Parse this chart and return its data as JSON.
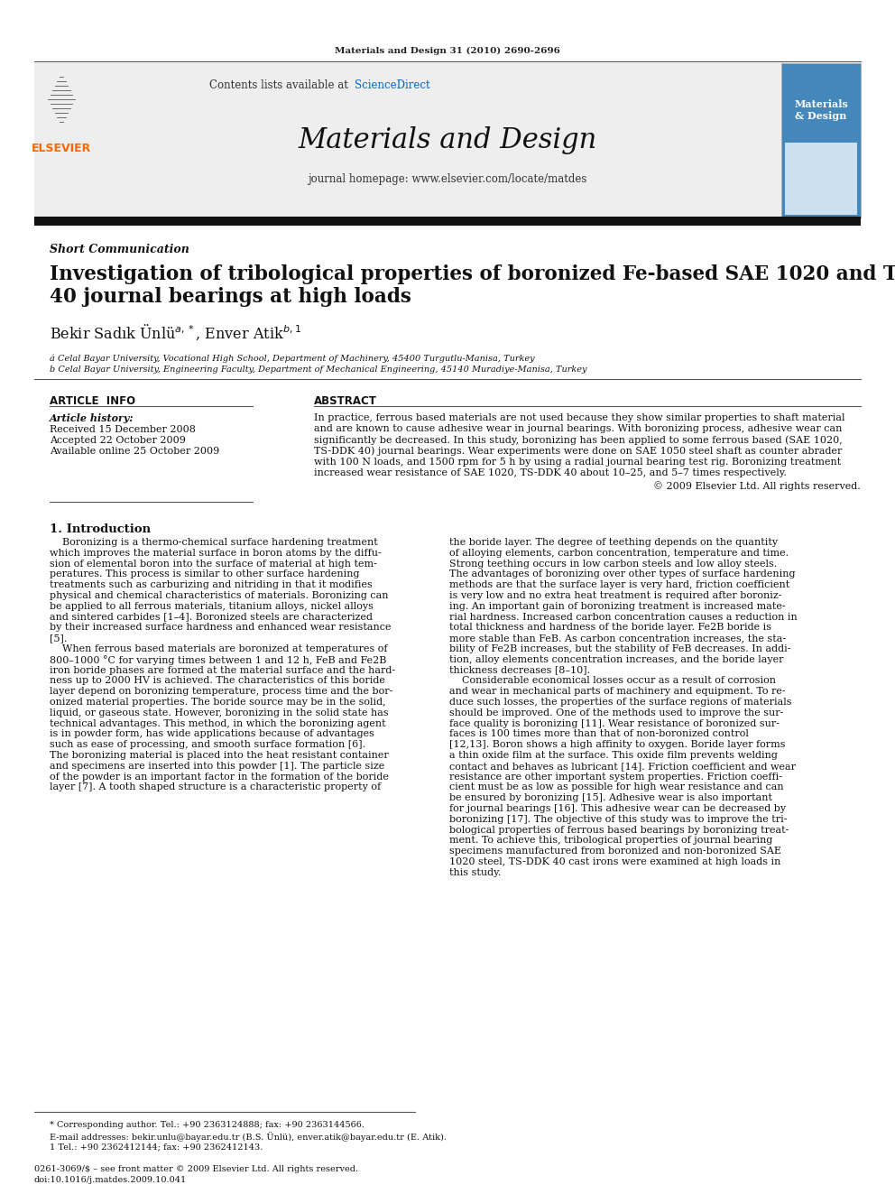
{
  "journal_ref": "Materials and Design 31 (2010) 2690-2696",
  "contents_text": "Contents lists available at",
  "sciencedirect_text": "ScienceDirect",
  "journal_title": "Materials and Design",
  "journal_homepage": "journal homepage: www.elsevier.com/locate/matdes",
  "section_label": "Short Communication",
  "authors": "Bekir Sadık Ünlü",
  "authors2": "Enver Atik",
  "affil_a": "á Celal Bayar University, Vocational High School, Department of Machinery, 45400 Turgutlu-Manisa, Turkey",
  "affil_b": "b Celal Bayar University, Engineering Faculty, Department of Mechanical Engineering, 45140 Muradiye-Manisa, Turkey",
  "article_info_header": "ARTICLE  INFO",
  "abstract_header": "ABSTRACT",
  "article_history_label": "Article history:",
  "received": "Received 15 December 2008",
  "accepted": "Accepted 22 October 2009",
  "available": "Available online 25 October 2009",
  "copyright_text": "© 2009 Elsevier Ltd. All rights reserved.",
  "intro_header": "1. Introduction",
  "footnote1": "* Corresponding author. Tel.: +90 2363124888; fax: +90 2363144566.",
  "footnote2": "E-mail addresses: bekir.unlu@bayar.edu.tr (B.S. Ünlü), enver.atik@bayar.edu.tr (E. Atik).",
  "footnote3": "1 Tel.: +90 2362412144; fax: +90 2362412143.",
  "issn_text": "0261-3069/$ – see front matter © 2009 Elsevier Ltd. All rights reserved.",
  "doi_text": "doi:10.1016/j.matdes.2009.10.041",
  "bg_color": "#ffffff",
  "elsevier_orange": "#ff6600",
  "sciencedirect_blue": "#0066cc"
}
